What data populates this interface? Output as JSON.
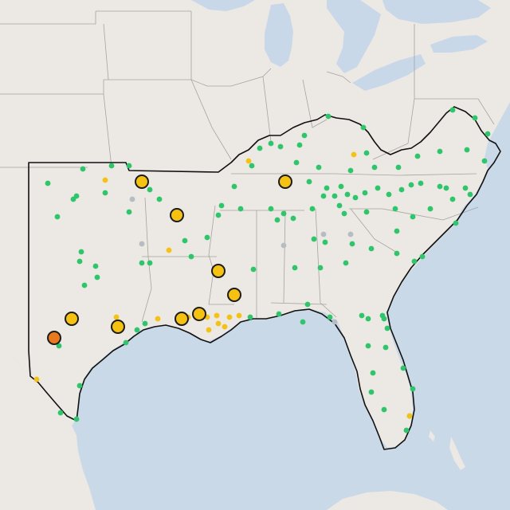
{
  "map": {
    "colors": {
      "ocean": "#c9d9e8",
      "land": "#ece8e4",
      "state_line": "#a7a3a0",
      "region_border": "#111111",
      "normal": "#2ec66b",
      "elevated": "#f5c211",
      "warning": "#e8791e",
      "offline": "#b6bcc4"
    },
    "legend": []
  }
}
